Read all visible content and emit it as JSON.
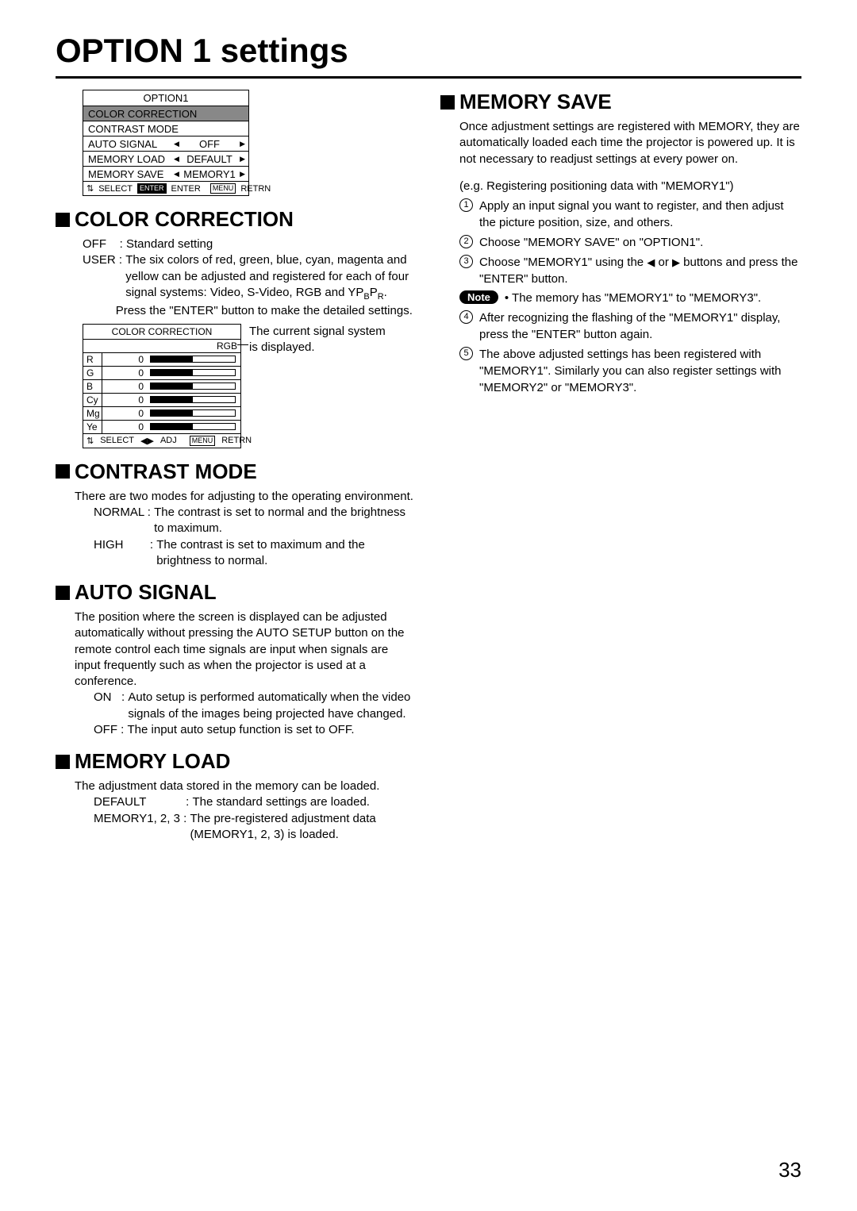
{
  "page": {
    "title": "OPTION 1 settings",
    "number": "33"
  },
  "menu": {
    "title": "OPTION1",
    "rows": [
      {
        "label": "COLOR CORRECTION",
        "highlighted": true
      },
      {
        "label": "CONTRAST MODE"
      },
      {
        "label": "AUTO SIGNAL",
        "value": "OFF"
      },
      {
        "label": "MEMORY LOAD",
        "value": "DEFAULT"
      },
      {
        "label": "MEMORY SAVE",
        "value": "MEMORY1"
      }
    ],
    "footer": {
      "select": "SELECT",
      "enter_btn": "ENTER",
      "enter": "ENTER",
      "menu_btn": "MENU",
      "retrn": "RETRN"
    }
  },
  "color_correction": {
    "heading": "COLOR CORRECTION",
    "off_k": "OFF    : ",
    "off_v": "Standard setting",
    "user_k": "USER : ",
    "user_v": "The six colors of red, green, blue, cyan, magenta and yellow can be adjusted and registered for each of four signal systems: Video, S-Video, RGB and YPBPR.",
    "user_v2": "Press the \"ENTER\" button to make the detailed settings.",
    "table": {
      "title": "COLOR CORRECTION",
      "signal": "RGB",
      "channels": [
        {
          "ch": "R",
          "val": "0"
        },
        {
          "ch": "G",
          "val": "0"
        },
        {
          "ch": "B",
          "val": "0"
        },
        {
          "ch": "Cy",
          "val": "0"
        },
        {
          "ch": "Mg",
          "val": "0"
        },
        {
          "ch": "Ye",
          "val": "0"
        }
      ],
      "footer": {
        "select": "SELECT",
        "adj": "ADJ",
        "menu_btn": "MENU",
        "retrn": "RETRN"
      }
    },
    "annotation": "The current signal system is displayed."
  },
  "contrast_mode": {
    "heading": "CONTRAST MODE",
    "intro": "There are two modes for adjusting to the operating environment.",
    "normal_k": "NORMAL : ",
    "normal_v": "The contrast is set to normal and the brightness to maximum.",
    "high_k": "HIGH        : ",
    "high_v": "The contrast is set to maximum and the brightness to normal."
  },
  "auto_signal": {
    "heading": "AUTO SIGNAL",
    "intro": "The position where the screen is displayed can be adjusted automatically without pressing the AUTO SETUP button on the remote control each time signals are input when signals are input frequently such as when the projector is used at a conference.",
    "on_k": "ON   : ",
    "on_v": "Auto setup is performed automatically when the video signals of the images being projected have changed.",
    "off_k": "OFF : ",
    "off_v": "The input auto setup function is set to OFF."
  },
  "memory_load": {
    "heading": "MEMORY LOAD",
    "intro": "The adjustment data stored in the memory can be loaded.",
    "def1_k": "DEFAULT            : ",
    "def1_v": "The standard settings are loaded.",
    "def2_k": "MEMORY1, 2, 3 : ",
    "def2_v": "The pre-registered adjustment data (MEMORY1, 2, 3) is loaded."
  },
  "memory_save": {
    "heading": "MEMORY SAVE",
    "intro": "Once adjustment settings are registered with MEMORY, they are automatically loaded each time the projector is powered up. It is not necessary to readjust settings at every power on.",
    "eg": "(e.g. Registering positioning data with \"MEMORY1\")",
    "s1": "Apply an input signal you want to register, and then adjust the picture position, size, and others.",
    "s2": "Choose \"MEMORY SAVE\" on \"OPTION1\".",
    "s3a": "Choose \"MEMORY1\" using the ",
    "s3b": " or ",
    "s3c": " buttons and press the \"ENTER\" button.",
    "note_label": "Note",
    "note": "• The memory has \"MEMORY1\" to \"MEMORY3\".",
    "s4": "After recognizing the flashing of the \"MEMORY1\" display, press the \"ENTER\" button again.",
    "s5": "The above adjusted settings has been registered with \"MEMORY1\". Similarly you can also register settings with \"MEMORY2\" or \"MEMORY3\"."
  }
}
